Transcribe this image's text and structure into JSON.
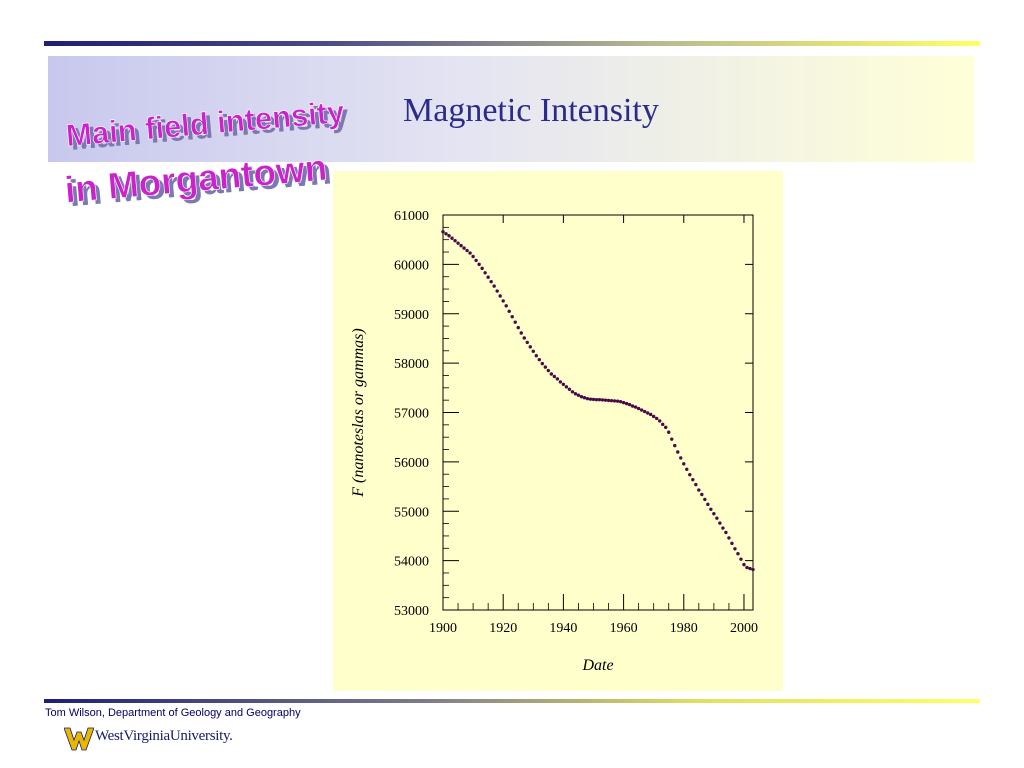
{
  "slide": {
    "title": "Magnetic Intensity",
    "wordart_line1": "Main field intensity",
    "wordart_line2": "in Morgantown",
    "footer": "Tom Wilson, Department of Geology and Geography",
    "logo_text": "WestVirginiaUniversity."
  },
  "colors": {
    "title_text": "#2b2b8c",
    "wordart_fill": "#cc22cc",
    "wordart_shadow": "#7a7ab0",
    "chart_background": "#ffffcc",
    "data_points": "#4a0a4a",
    "logo_gold": "#e8b800",
    "logo_blue": "#1a1a66"
  },
  "icons": {
    "logo": "wvu-flying-wv-icon"
  },
  "chart_data": {
    "type": "scatter",
    "title": "",
    "xlabel": "Date",
    "ylabel": "F (nanoteslas or gammas)",
    "xlim": [
      1900,
      2003
    ],
    "ylim": [
      53000,
      61000
    ],
    "xticks": [
      1900,
      1920,
      1940,
      1960,
      1980,
      2000
    ],
    "yticks": [
      53000,
      54000,
      55000,
      56000,
      57000,
      58000,
      59000,
      60000,
      61000
    ],
    "grid": false,
    "legend": "none",
    "series": [
      {
        "x": [
          1900,
          1901,
          1902,
          1903,
          1904,
          1905,
          1906,
          1907,
          1908,
          1909,
          1910,
          1911,
          1912,
          1913,
          1914,
          1915,
          1916,
          1917,
          1918,
          1919,
          1920,
          1921,
          1922,
          1923,
          1924,
          1925,
          1926,
          1927,
          1928,
          1929,
          1930,
          1931,
          1932,
          1933,
          1934,
          1935,
          1936,
          1937,
          1938,
          1939,
          1940,
          1941,
          1942,
          1943,
          1944,
          1945,
          1946,
          1947,
          1948,
          1949,
          1950,
          1951,
          1952,
          1953,
          1954,
          1955,
          1956,
          1957,
          1958,
          1959,
          1960,
          1961,
          1962,
          1963,
          1964,
          1965,
          1966,
          1967,
          1968,
          1969,
          1970,
          1971,
          1972,
          1973,
          1974,
          1975,
          1976,
          1977,
          1978,
          1979,
          1980,
          1981,
          1982,
          1983,
          1984,
          1985,
          1986,
          1987,
          1988,
          1989,
          1990,
          1991,
          1992,
          1993,
          1994,
          1995,
          1996,
          1997,
          1998,
          1999,
          2000,
          2001,
          2002,
          2003
        ],
        "y": [
          60660,
          60620,
          60580,
          60530,
          60480,
          60430,
          60380,
          60330,
          60280,
          60230,
          60160,
          60080,
          60000,
          59920,
          59830,
          59740,
          59650,
          59560,
          59460,
          59360,
          59260,
          59160,
          59050,
          58940,
          58830,
          58720,
          58610,
          58510,
          58420,
          58330,
          58240,
          58150,
          58070,
          57990,
          57920,
          57850,
          57780,
          57730,
          57680,
          57620,
          57570,
          57520,
          57470,
          57420,
          57380,
          57350,
          57320,
          57300,
          57280,
          57270,
          57265,
          57260,
          57260,
          57255,
          57250,
          57245,
          57240,
          57235,
          57230,
          57220,
          57200,
          57180,
          57160,
          57130,
          57110,
          57080,
          57050,
          57020,
          56990,
          56960,
          56920,
          56880,
          56830,
          56760,
          56700,
          56600,
          56460,
          56330,
          56200,
          56080,
          55960,
          55850,
          55740,
          55640,
          55540,
          55430,
          55340,
          55240,
          55140,
          55040,
          54950,
          54860,
          54760,
          54660,
          54570,
          54460,
          54350,
          54240,
          54140,
          54030,
          53920,
          53860,
          53840,
          53820
        ]
      }
    ]
  }
}
